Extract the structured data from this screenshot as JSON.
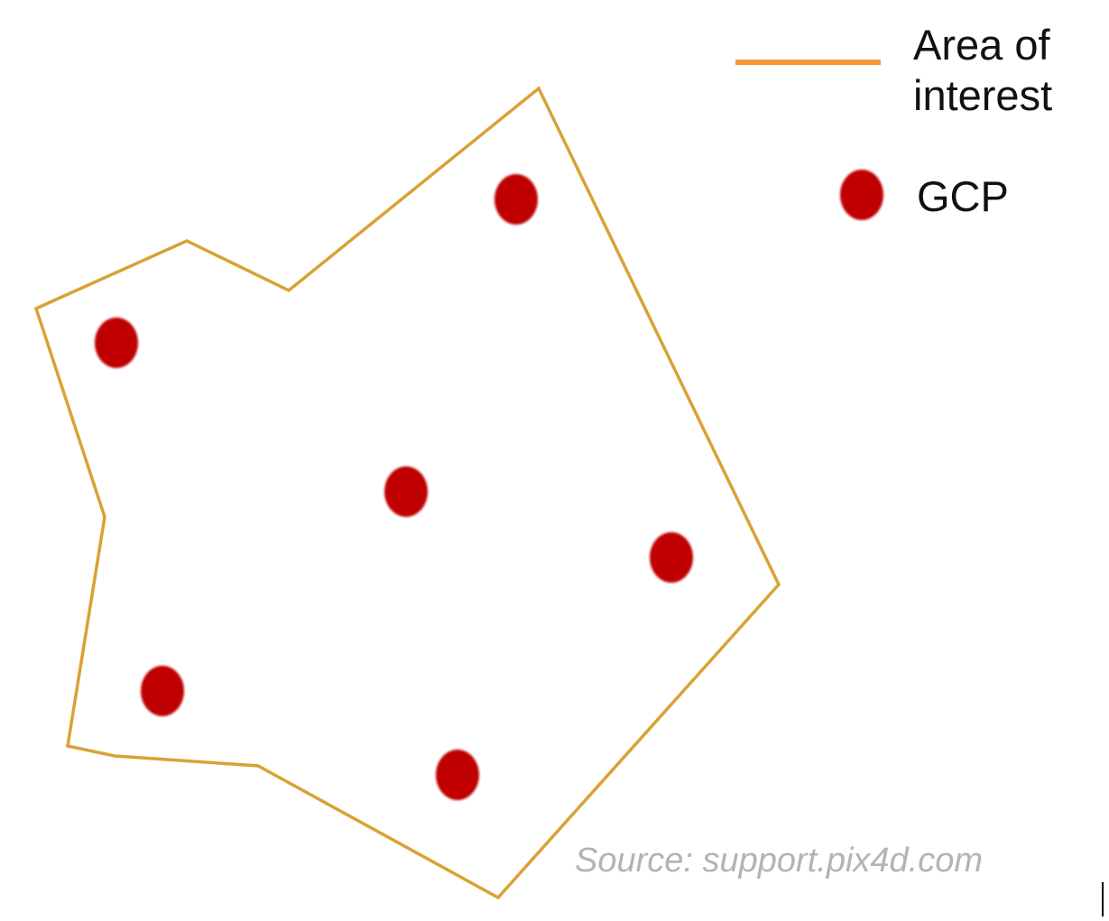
{
  "legend": {
    "area_of_interest_label": "Area of interest",
    "gcp_label": "GCP"
  },
  "source_note": "Source: support.pix4d.com",
  "colors": {
    "area_outline": "#D9A234",
    "legend_line": "#F39A3A",
    "gcp_fill": "#C00000",
    "source_text": "#B3B3B3"
  },
  "icons": {
    "gcp_marker": "red-dot-icon",
    "area_marker": "orange-line-icon"
  }
}
